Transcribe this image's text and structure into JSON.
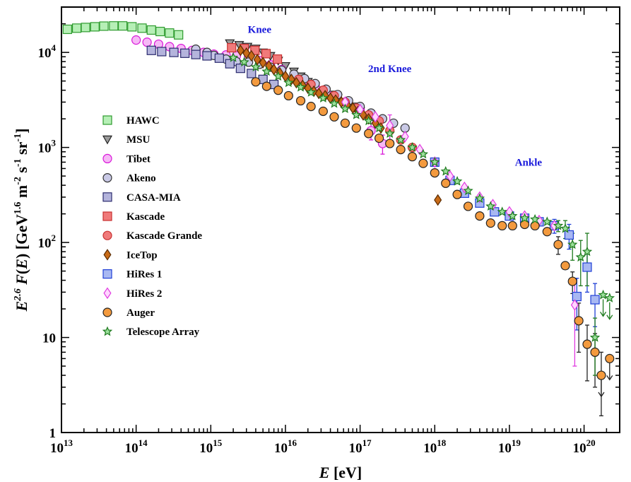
{
  "chart_data": {
    "type": "scatter",
    "xscale": "log",
    "yscale": "log",
    "xlim": [
      10000000000000.0,
      3e+20
    ],
    "ylim": [
      1,
      30000
    ],
    "xlabel": "E [eV]",
    "ylabel": "E^{2.6} F(E) [GeV^{1.6} m^{-2} s^{-1} sr^{-1}]",
    "x_ticks": [
      {
        "value": 10000000000000.0,
        "base": "10",
        "exp": "13"
      },
      {
        "value": 100000000000000.0,
        "base": "10",
        "exp": "14"
      },
      {
        "value": 1000000000000000.0,
        "base": "10",
        "exp": "15"
      },
      {
        "value": 1e+16,
        "base": "10",
        "exp": "16"
      },
      {
        "value": 1e+17,
        "base": "10",
        "exp": "17"
      },
      {
        "value": 1e+18,
        "base": "10",
        "exp": "18"
      },
      {
        "value": 1e+19,
        "base": "10",
        "exp": "19"
      },
      {
        "value": 1e+20,
        "base": "10",
        "exp": "20"
      }
    ],
    "y_ticks": [
      {
        "value": 1,
        "base": "1",
        "exp": ""
      },
      {
        "value": 10,
        "base": "10",
        "exp": ""
      },
      {
        "value": 100,
        "base": "10",
        "exp": "2"
      },
      {
        "value": 1000,
        "base": "10",
        "exp": "3"
      },
      {
        "value": 10000,
        "base": "10",
        "exp": "4"
      }
    ],
    "annotations": [
      {
        "text": "Knee",
        "x": 4500000000000000.0,
        "y": 16000,
        "color": "#1a1adb"
      },
      {
        "text": "2nd Knee",
        "x": 2.5e+17,
        "y": 6200,
        "color": "#1a1adb"
      },
      {
        "text": "Ankle",
        "x": 1.8e+19,
        "y": 640,
        "color": "#1a1adb"
      }
    ],
    "legend_position": "left",
    "series": [
      {
        "name": "HAWC",
        "marker": "square",
        "stroke": "#2e9b2e",
        "fill": "#b6efb6",
        "x": [
          12000000000000.0,
          16000000000000.0,
          21000000000000.0,
          28000000000000.0,
          37000000000000.0,
          50000000000000.0,
          66000000000000.0,
          88000000000000.0,
          120000000000000.0,
          160000000000000.0,
          210000000000000.0,
          280000000000000.0,
          370000000000000.0
        ],
        "y": [
          17500,
          18000,
          18300,
          18600,
          18900,
          19000,
          19000,
          18600,
          18000,
          17200,
          16600,
          16000,
          15300
        ]
      },
      {
        "name": "MSU",
        "marker": "triangle-down",
        "stroke": "#222222",
        "fill": "#9a9a9a",
        "x": [
          1800000000000000.0,
          2400000000000000.0,
          3100000000000000.0,
          4000000000000000.0,
          5000000000000000.0,
          6300000000000000.0,
          8000000000000000.0,
          1e+16,
          1.3e+16,
          1.6e+16,
          2e+16,
          2.5e+16,
          3.2e+16,
          4e+16,
          5e+16,
          6.3e+16,
          8e+16,
          1e+17,
          1.3e+17,
          1.6e+17
        ],
        "y": [
          12500,
          12000,
          11500,
          11000,
          10000,
          9200,
          8200,
          7200,
          6300,
          5600,
          4900,
          4400,
          4000,
          3600,
          3300,
          3000,
          2700,
          2400,
          2100,
          1900
        ]
      },
      {
        "name": "Tibet",
        "marker": "circle",
        "stroke": "#d916d9",
        "fill": "#f6b8f6",
        "x": [
          100000000000000.0,
          140000000000000.0,
          200000000000000.0,
          280000000000000.0,
          400000000000000.0,
          560000000000000.0,
          800000000000000.0,
          1100000000000000.0,
          1600000000000000.0,
          2200000000000000.0,
          3200000000000000.0,
          4500000000000000.0,
          6300000000000000.0,
          8900000000000000.0,
          1.3e+16,
          1.8e+16,
          2.5e+16,
          3.5e+16,
          5e+16,
          7e+16,
          1e+17,
          1.4e+17,
          2e+17
        ],
        "y": [
          13500,
          12800,
          12200,
          11500,
          11000,
          10500,
          10000,
          9600,
          9400,
          9200,
          8900,
          8200,
          7400,
          6600,
          5800,
          5100,
          4400,
          3800,
          3300,
          2900,
          2500,
          1500,
          1100
        ],
        "err": [
          0,
          0,
          0,
          0,
          0,
          0,
          0,
          0,
          0,
          0,
          0,
          0,
          0,
          0,
          0,
          0,
          0,
          0,
          0,
          0,
          0,
          300,
          250
        ]
      },
      {
        "name": "Akeno",
        "marker": "circle",
        "stroke": "#333333",
        "fill": "#c9c9e6",
        "x": [
          630000000000000.0,
          890000000000000.0,
          1100000000000000.0,
          1600000000000000.0,
          2200000000000000.0,
          3200000000000000.0,
          4500000000000000.0,
          6300000000000000.0,
          8900000000000000.0,
          1.3e+16,
          1.8e+16,
          2.5e+16,
          3.5e+16,
          5e+16,
          7e+16,
          1e+17,
          1.4e+17,
          2e+17,
          2.8e+17,
          4e+17
        ],
        "y": [
          10800,
          10000,
          9300,
          8500,
          8000,
          7900,
          7500,
          7000,
          6500,
          5900,
          5300,
          4700,
          4100,
          3600,
          3100,
          2700,
          2300,
          2000,
          1800,
          1600
        ]
      },
      {
        "name": "CASA-MIA",
        "marker": "square",
        "stroke": "#2b2b6e",
        "fill": "#b4b4dc",
        "x": [
          160000000000000.0,
          220000000000000.0,
          320000000000000.0,
          450000000000000.0,
          630000000000000.0,
          890000000000000.0,
          1300000000000000.0,
          1800000000000000.0,
          2500000000000000.0,
          3500000000000000.0,
          5000000000000000.0,
          7000000000000000.0
        ],
        "y": [
          10500,
          10200,
          10000,
          9800,
          9500,
          9200,
          8700,
          7600,
          6800,
          6000,
          5200,
          4600
        ]
      },
      {
        "name": "Kascade",
        "marker": "square",
        "stroke": "#c83030",
        "fill": "#f07a7a",
        "x": [
          1900000000000000.0,
          2800000000000000.0,
          3900000000000000.0,
          5500000000000000.0,
          7800000000000000.0
        ],
        "y": [
          11200,
          11000,
          10500,
          9700,
          8500
        ]
      },
      {
        "name": "Kascade Grande",
        "marker": "circle",
        "stroke": "#c83030",
        "fill": "#f07a7a",
        "x": [
          1.5e+16,
          2.2e+16,
          3.2e+16,
          4.5e+16,
          6.3e+16,
          8.9e+16,
          1.3e+17,
          1.8e+17,
          2.5e+17,
          3.5e+17,
          5e+17
        ],
        "y": [
          5200,
          4600,
          4000,
          3500,
          3000,
          2600,
          2200,
          1900,
          1500,
          1200,
          1000
        ]
      },
      {
        "name": "IceTop",
        "marker": "diamond",
        "stroke": "#5a2a00",
        "fill": "#c86b18",
        "x": [
          2500000000000000.0,
          3000000000000000.0,
          3500000000000000.0,
          4200000000000000.0,
          5000000000000000.0,
          6000000000000000.0,
          7000000000000000.0,
          8400000000000000.0,
          1e+16,
          1.2e+16,
          1.4e+16,
          1.7e+16,
          2e+16,
          2.4e+16,
          2.8e+16,
          3.4e+16,
          4e+16,
          4.7e+16,
          5.6e+16,
          6.7e+16,
          8e+16,
          9.4e+16,
          1.1e+17,
          1.3e+17,
          1.6e+17,
          1.9e+17,
          1.1e+18
        ],
        "y": [
          10500,
          9800,
          9200,
          8400,
          7800,
          7200,
          6600,
          6100,
          5600,
          5200,
          4800,
          4500,
          4200,
          3900,
          3700,
          3500,
          3300,
          3150,
          3000,
          2800,
          2600,
          2400,
          2200,
          2000,
          1800,
          1600,
          280
        ]
      },
      {
        "name": "HiRes 1",
        "marker": "square",
        "stroke": "#1f3fd6",
        "fill": "#a8b8f2",
        "x": [
          1e+18,
          1.6e+18,
          2.5e+18,
          4e+18,
          6.3e+18,
          1e+19,
          1.6e+19,
          2.5e+19,
          4e+19,
          6.3e+19,
          8e+19,
          1.1e+20,
          1.4e+20
        ],
        "y": [
          700,
          450,
          330,
          260,
          210,
          190,
          180,
          165,
          150,
          120,
          27,
          55,
          25
        ],
        "err": [
          0,
          0,
          0,
          0,
          0,
          0,
          0,
          15,
          25,
          35,
          15,
          25,
          12
        ]
      },
      {
        "name": "HiRes 2",
        "marker": "diamond",
        "stroke": "#e03ae0",
        "fill": "#ffd6ff",
        "x": [
          6.3e+16,
          1e+17,
          1.6e+17,
          2.5e+17,
          4e+17,
          6.3e+17,
          1e+18,
          1.6e+18,
          2.5e+18,
          4e+18,
          6e+18,
          1e+19,
          1.6e+19,
          2.5e+19,
          4e+19,
          7.5e+19
        ],
        "y": [
          3000,
          2500,
          2100,
          1700,
          1300,
          950,
          700,
          500,
          380,
          300,
          250,
          210,
          190,
          170,
          150,
          22
        ],
        "err": [
          0,
          0,
          0,
          500,
          0,
          0,
          0,
          0,
          0,
          0,
          0,
          0,
          0,
          0,
          0,
          17
        ]
      },
      {
        "name": "Auger",
        "marker": "circle",
        "stroke": "#222222",
        "fill": "#f39a3e",
        "x": [
          4000000000000000.0,
          5600000000000000.0,
          8000000000000000.0,
          1.1e+16,
          1.6e+16,
          2.2e+16,
          3.2e+16,
          4.5e+16,
          6.3e+16,
          8.9e+16,
          1.3e+17,
          1.8e+17,
          2.5e+17,
          3.5e+17,
          5e+17,
          7e+17,
          1e+18,
          1.4e+18,
          2e+18,
          2.8e+18,
          4e+18,
          5.6e+18,
          8e+18,
          1.1e+19,
          1.6e+19,
          2.2e+19,
          3.2e+19,
          4.5e+19,
          5.6e+19,
          7e+19,
          8.5e+19,
          1.1e+20,
          1.4e+20,
          1.7e+20,
          2.2e+20
        ],
        "y": [
          4900,
          4400,
          4000,
          3500,
          3100,
          2700,
          2400,
          2100,
          1800,
          1600,
          1400,
          1250,
          1100,
          950,
          800,
          680,
          540,
          420,
          320,
          240,
          190,
          160,
          150,
          150,
          155,
          150,
          130,
          95,
          57,
          39,
          15,
          8.5,
          7,
          4,
          6
        ],
        "err": [
          0,
          0,
          0,
          0,
          0,
          0,
          0,
          0,
          0,
          0,
          0,
          0,
          0,
          0,
          0,
          0,
          0,
          0,
          0,
          0,
          0,
          0,
          0,
          0,
          0,
          0,
          0,
          20,
          0,
          10,
          8,
          5,
          4,
          3,
          0
        ]
      },
      {
        "name": "Telescope Array",
        "marker": "star",
        "stroke": "#1e7a1e",
        "fill": "#9be09b",
        "x": [
          2000000000000000.0,
          2800000000000000.0,
          4000000000000000.0,
          5600000000000000.0,
          8000000000000000.0,
          1.1e+16,
          1.6e+16,
          2.2e+16,
          3.2e+16,
          4.5e+16,
          6.3e+16,
          8.9e+16,
          1.3e+17,
          1.8e+17,
          2.5e+17,
          3.5e+17,
          5e+17,
          7e+17,
          1e+18,
          1.4e+18,
          2e+18,
          2.8e+18,
          4e+18,
          5.6e+18,
          8e+18,
          1.1e+19,
          1.6e+19,
          2.2e+19,
          3.2e+19,
          4.5e+19,
          5.6e+19,
          7e+19,
          9e+19,
          1.1e+20,
          1.4e+20,
          1.8e+20,
          2.2e+20
        ],
        "y": [
          8800,
          7900,
          7000,
          6300,
          5600,
          4800,
          4300,
          3800,
          3300,
          2900,
          2550,
          2200,
          1900,
          1600,
          1400,
          1200,
          1000,
          850,
          700,
          560,
          440,
          350,
          290,
          240,
          210,
          190,
          180,
          175,
          165,
          150,
          140,
          95,
          70,
          80,
          10,
          28,
          26
        ],
        "err": [
          0,
          0,
          0,
          0,
          0,
          0,
          0,
          0,
          0,
          0,
          0,
          0,
          0,
          0,
          0,
          0,
          0,
          0,
          0,
          0,
          0,
          0,
          0,
          0,
          0,
          0,
          0,
          0,
          0,
          20,
          30,
          30,
          35,
          45,
          6,
          0,
          0
        ]
      }
    ]
  }
}
